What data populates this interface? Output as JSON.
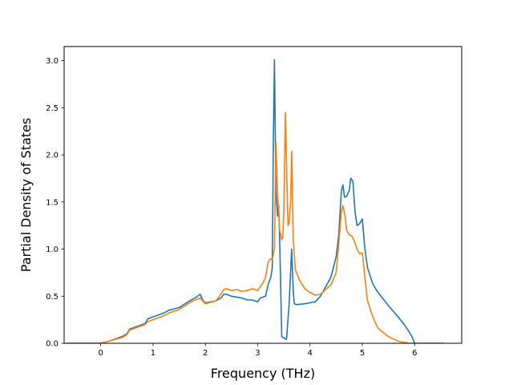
{
  "chart_data": {
    "type": "line",
    "title": "",
    "xlabel": "Frequency (THz)",
    "ylabel": "Partial Density of States",
    "xlim": [
      -0.7,
      6.9
    ],
    "ylim": [
      0.0,
      3.15
    ],
    "x_ticks": [
      0,
      1,
      2,
      3,
      4,
      5,
      6
    ],
    "x_tick_labels": [
      "0",
      "1",
      "2",
      "3",
      "4",
      "5",
      "6"
    ],
    "y_ticks": [
      0.0,
      0.5,
      1.0,
      1.5,
      2.0,
      2.5,
      3.0
    ],
    "y_tick_labels": [
      "0.0",
      "0.5",
      "1.0",
      "1.5",
      "2.0",
      "2.5",
      "3.0"
    ],
    "grid": false,
    "legend": "none",
    "series": [
      {
        "color": "#1f77b4",
        "x": [
          -0.65,
          0.0,
          0.2,
          0.4,
          0.5,
          0.55,
          0.7,
          0.85,
          0.9,
          1.0,
          1.2,
          1.3,
          1.5,
          1.7,
          1.8,
          1.9,
          1.95,
          2.0,
          2.2,
          2.3,
          2.35,
          2.4,
          2.5,
          2.7,
          2.8,
          2.9,
          3.0,
          3.05,
          3.15,
          3.2,
          3.25,
          3.28,
          3.3,
          3.32,
          3.35,
          3.38,
          3.4,
          3.42,
          3.44,
          3.46,
          3.5,
          3.55,
          3.6,
          3.65,
          3.68,
          3.7,
          3.75,
          3.9,
          4.0,
          4.1,
          4.2,
          4.3,
          4.4,
          4.5,
          4.55,
          4.6,
          4.63,
          4.66,
          4.7,
          4.75,
          4.78,
          4.82,
          4.86,
          4.9,
          4.95,
          5.0,
          5.05,
          5.1,
          5.2,
          5.3,
          5.5,
          5.7,
          5.8,
          5.9,
          5.95,
          6.0,
          6.55
        ],
        "y": [
          0.0,
          0.0,
          0.03,
          0.07,
          0.1,
          0.15,
          0.18,
          0.21,
          0.26,
          0.28,
          0.32,
          0.35,
          0.38,
          0.45,
          0.48,
          0.52,
          0.46,
          0.43,
          0.45,
          0.48,
          0.52,
          0.52,
          0.5,
          0.48,
          0.46,
          0.46,
          0.44,
          0.48,
          0.5,
          0.62,
          0.7,
          0.8,
          2.2,
          3.01,
          1.6,
          1.35,
          1.47,
          1.1,
          0.6,
          0.07,
          0.06,
          0.04,
          0.4,
          1.0,
          0.55,
          0.42,
          0.41,
          0.42,
          0.43,
          0.44,
          0.5,
          0.6,
          0.7,
          0.92,
          1.15,
          1.62,
          1.68,
          1.55,
          1.56,
          1.62,
          1.75,
          1.72,
          1.4,
          1.25,
          1.27,
          1.32,
          1.0,
          0.8,
          0.63,
          0.54,
          0.4,
          0.27,
          0.2,
          0.12,
          0.07,
          0.0,
          0.0
        ]
      },
      {
        "color": "#ff7f0e",
        "x": [
          -0.65,
          0.0,
          0.2,
          0.4,
          0.5,
          0.55,
          0.7,
          0.85,
          0.9,
          1.0,
          1.2,
          1.3,
          1.5,
          1.7,
          1.8,
          1.9,
          1.95,
          2.0,
          2.2,
          2.3,
          2.35,
          2.4,
          2.5,
          2.6,
          2.7,
          2.8,
          2.9,
          3.0,
          3.05,
          3.1,
          3.15,
          3.2,
          3.25,
          3.28,
          3.32,
          3.35,
          3.38,
          3.42,
          3.46,
          3.48,
          3.5,
          3.53,
          3.56,
          3.58,
          3.6,
          3.63,
          3.65,
          3.68,
          3.72,
          3.8,
          3.9,
          4.0,
          4.1,
          4.2,
          4.3,
          4.4,
          4.5,
          4.55,
          4.6,
          4.63,
          4.67,
          4.7,
          4.75,
          4.8,
          4.85,
          4.9,
          4.95,
          5.0,
          5.05,
          5.1,
          5.2,
          5.3,
          5.5,
          5.7,
          5.8,
          5.9,
          5.95,
          6.0,
          6.55
        ],
        "y": [
          0.0,
          0.0,
          0.03,
          0.06,
          0.09,
          0.14,
          0.17,
          0.2,
          0.23,
          0.25,
          0.29,
          0.32,
          0.36,
          0.43,
          0.46,
          0.48,
          0.45,
          0.42,
          0.45,
          0.52,
          0.57,
          0.58,
          0.56,
          0.57,
          0.55,
          0.56,
          0.58,
          0.56,
          0.6,
          0.64,
          0.7,
          0.86,
          0.9,
          0.89,
          1.0,
          2.13,
          1.6,
          1.2,
          1.1,
          1.12,
          1.4,
          2.45,
          1.7,
          1.25,
          1.28,
          1.5,
          2.04,
          1.1,
          0.78,
          0.67,
          0.58,
          0.54,
          0.51,
          0.52,
          0.57,
          0.62,
          0.75,
          1.05,
          1.4,
          1.46,
          1.35,
          1.2,
          1.15,
          1.14,
          1.08,
          1.0,
          0.95,
          0.96,
          0.7,
          0.45,
          0.28,
          0.16,
          0.07,
          0.02,
          0.01,
          0.0,
          0.0,
          0.0,
          0.0
        ]
      }
    ]
  }
}
